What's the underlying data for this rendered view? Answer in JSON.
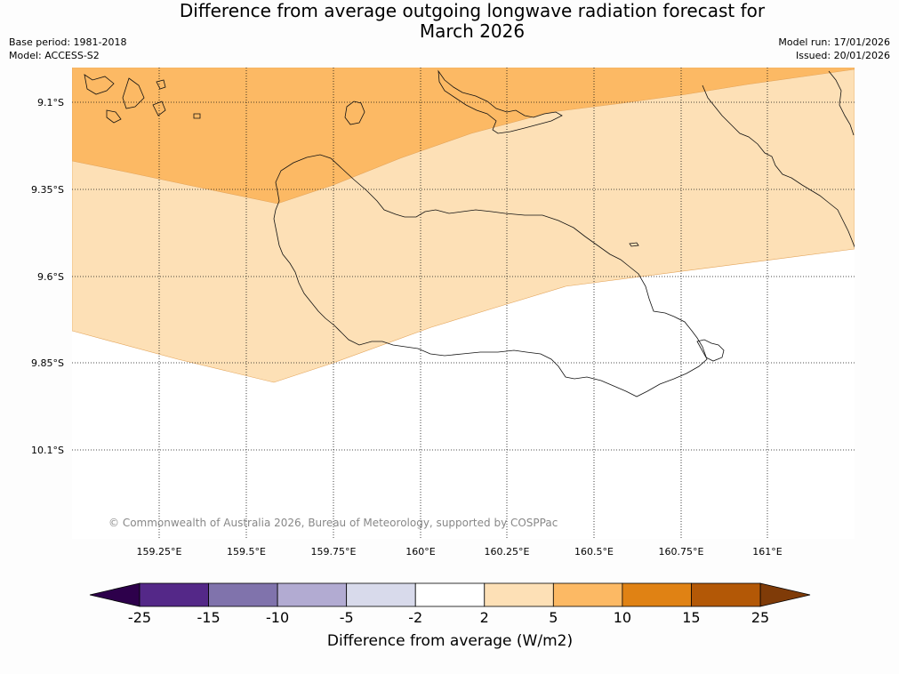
{
  "header": {
    "title_line1": "Difference from average outgoing longwave radiation forecast for",
    "title_line2": "March 2026",
    "base_period": "Base period: 1981-2018",
    "model": "Model: ACCESS-S2",
    "model_run": "Model run: 17/01/2026",
    "issued": "Issued: 20/01/2026"
  },
  "map": {
    "latitude_labels": [
      "9.1°S",
      "9.35°S",
      "9.6°S",
      "9.85°S",
      "10.1°S"
    ],
    "longitude_labels": [
      "159.25°E",
      "159.5°E",
      "159.75°E",
      "160°E",
      "160.25°E",
      "160.5°E",
      "160.75°E",
      "161°E"
    ],
    "copyright": "© Commonwealth of Australia 2026, Bureau of Meteorology, supported by COSPPac",
    "fill_colors": {
      "5_to_10": "#fcb964",
      "2_to_5": "#fde0b6",
      "neutral": "#ffffff"
    }
  },
  "colorbar": {
    "ticks": [
      "-25",
      "-15",
      "-10",
      "-5",
      "-2",
      "2",
      "5",
      "10",
      "15",
      "25"
    ],
    "colors": [
      "#542888",
      "#8073ac",
      "#b2abd2",
      "#d8daeb",
      "#ffffff",
      "#fde0b6",
      "#fcb964",
      "#e08214",
      "#b35806"
    ],
    "under_color": "#2d004b",
    "over_color": "#7f3b08",
    "label": "Difference from average (W/m2)"
  }
}
